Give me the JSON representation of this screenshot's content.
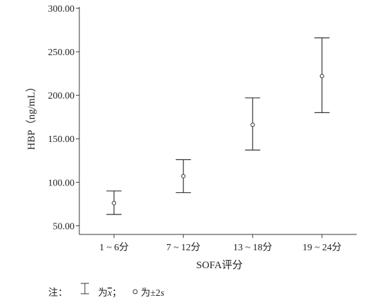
{
  "chart_data": {
    "type": "errorbar",
    "xlabel": "SOFA评分",
    "ylabel": "HBP（ng/mL）",
    "ylim": [
      40,
      300
    ],
    "y_ticks": [
      50,
      100,
      150,
      200,
      250,
      300
    ],
    "y_tick_labels": [
      "50.00",
      "100.00",
      "150.00",
      "200.00",
      "250.00",
      "300.00"
    ],
    "categories": [
      "1 ~ 6分",
      "7 ~ 12分",
      "13 ~ 18分",
      "19 ~ 24分"
    ],
    "series": [
      {
        "mean": [
          76,
          107,
          166,
          222
        ],
        "lower": [
          63,
          88,
          137,
          180
        ],
        "upper": [
          90,
          126,
          197,
          266
        ]
      }
    ],
    "grid": false,
    "legend": "none"
  },
  "note": {
    "prefix": "注：",
    "bar_text_1": "为",
    "bar_var": "x",
    "bar_text_2": "；",
    "point_text": "为±2",
    "point_var": "s"
  }
}
